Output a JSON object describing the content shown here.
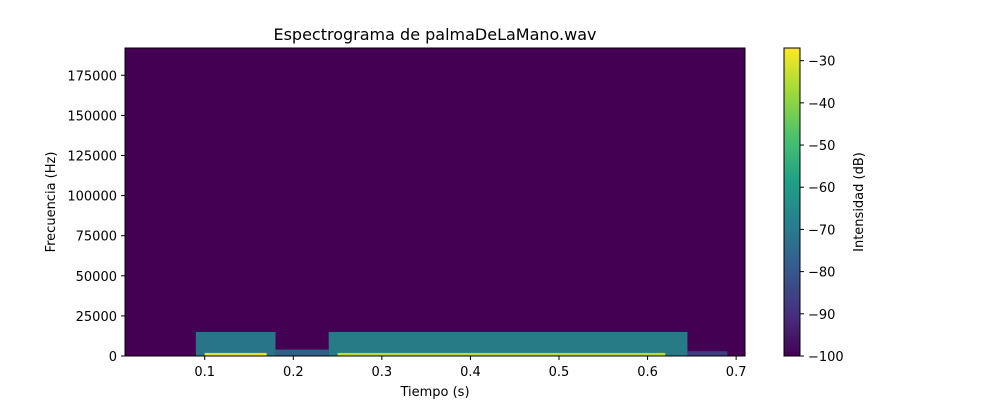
{
  "chart_data": {
    "type": "heatmap",
    "title": "Espectrograma de palmaDeLaMano.wav",
    "xlabel": "Tiempo (s)",
    "ylabel": "Frecuencia (Hz)",
    "xlim": [
      0.01,
      0.71
    ],
    "ylim": [
      0,
      192000
    ],
    "xticks": [
      0.1,
      0.2,
      0.3,
      0.4,
      0.5,
      0.6,
      0.7
    ],
    "xtick_labels": [
      "0.1",
      "0.2",
      "0.3",
      "0.4",
      "0.5",
      "0.6",
      "0.7"
    ],
    "yticks": [
      0,
      25000,
      50000,
      75000,
      100000,
      125000,
      150000,
      175000
    ],
    "ytick_labels": [
      "0",
      "25000",
      "50000",
      "75000",
      "100000",
      "125000",
      "150000",
      "175000"
    ],
    "colorbar": {
      "label": "Intensidad (dB)",
      "range": [
        -100,
        -27
      ],
      "ticks": [
        -30,
        -40,
        -50,
        -60,
        -70,
        -80,
        -90,
        -100
      ],
      "tick_labels": [
        "−30",
        "−40",
        "−50",
        "−60",
        "−70",
        "−80",
        "−90",
        "−100"
      ],
      "colormap": "viridis"
    },
    "background_db": -100,
    "energy_regions": [
      {
        "t_start": 0.09,
        "t_end": 0.18,
        "f_max": 15000,
        "db": -68
      },
      {
        "t_start": 0.18,
        "t_end": 0.24,
        "f_max": 4000,
        "db": -75
      },
      {
        "t_start": 0.24,
        "t_end": 0.645,
        "f_max": 15000,
        "db": -66
      },
      {
        "t_start": 0.645,
        "t_end": 0.69,
        "f_max": 3000,
        "db": -85
      }
    ],
    "peak_lines": [
      {
        "t_start": 0.1,
        "t_end": 0.17,
        "f": 1000,
        "db": -30
      },
      {
        "t_start": 0.25,
        "t_end": 0.62,
        "f": 1000,
        "db": -35
      }
    ]
  }
}
